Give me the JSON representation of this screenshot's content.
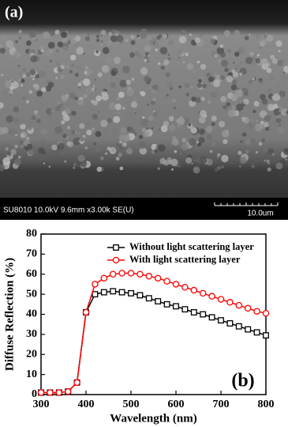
{
  "sem_image": {
    "label": "(a)",
    "info": "SU8010 10.0kV 9.6mm x3.00k SE(U)",
    "scale": "10.0um"
  },
  "chart_data": {
    "type": "line",
    "annotation": "(b)",
    "x_label": "Wavelength (nm)",
    "y_label": "Diffuse Reflection (%)",
    "x": [
      300,
      320,
      340,
      360,
      380,
      400,
      420,
      440,
      460,
      480,
      500,
      520,
      540,
      560,
      580,
      600,
      620,
      640,
      660,
      680,
      700,
      720,
      740,
      760,
      780,
      800
    ],
    "series": [
      {
        "name": "Without light scattering layer",
        "color": "#000000",
        "marker": "square",
        "values": [
          1,
          1,
          1,
          1.5,
          6,
          41,
          50,
          51,
          51.5,
          51,
          50.5,
          49.5,
          48,
          46.5,
          45,
          44,
          42.5,
          41,
          40,
          38.5,
          37,
          35.5,
          34,
          32.5,
          31,
          29.5
        ]
      },
      {
        "name": "With light scattering layer",
        "color": "#ff0000",
        "marker": "circle",
        "values": [
          1,
          1,
          1,
          1.5,
          6,
          41,
          55,
          58,
          60,
          60.5,
          60.5,
          60,
          59,
          58,
          56.5,
          55,
          53.5,
          52,
          50.5,
          49,
          47.5,
          46,
          44.5,
          43,
          41.5,
          40.5
        ]
      }
    ],
    "xlim": [
      300,
      800
    ],
    "xticks": [
      300,
      400,
      500,
      600,
      700,
      800
    ],
    "ylim": [
      0,
      80
    ],
    "yticks": [
      0,
      10,
      20,
      30,
      40,
      50,
      60,
      70,
      80
    ],
    "legend": "upper-right"
  }
}
